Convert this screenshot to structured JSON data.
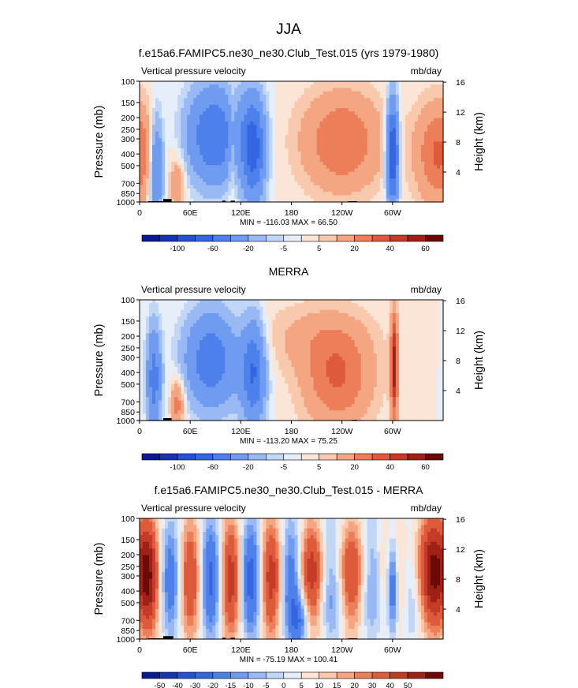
{
  "page": {
    "title": "JJA"
  },
  "chart_data": [
    {
      "type": "heatmap",
      "title": "f.e15a6.FAMIPC5.ne30_ne30.Club_Test.015 (yrs 1979-1980)",
      "left_label": "Vertical pressure velocity",
      "right_label": "mb/day",
      "ylabel": "Pressure (mb)",
      "ylabel_right": "Height (km)",
      "xticks": [
        "0",
        "60E",
        "120E",
        "180",
        "120W",
        "60W"
      ],
      "xtick_lon": [
        0,
        60,
        120,
        180,
        240,
        300
      ],
      "xlim": [
        0,
        360
      ],
      "yticks": [
        "100",
        "150",
        "200",
        "250",
        "300",
        "400",
        "500",
        "700",
        "850",
        "1000"
      ],
      "ytick_values": [
        100,
        150,
        200,
        250,
        300,
        400,
        500,
        700,
        850,
        1000
      ],
      "ylim": [
        100,
        1000
      ],
      "height_ticks": [
        "4",
        "8",
        "12",
        "16"
      ],
      "height_values": [
        4,
        8,
        12,
        16
      ],
      "stats": "MIN = -116.03   MAX =  66.50",
      "colorbar_labels": [
        "-100",
        "-60",
        "-20",
        "-5",
        "5",
        "20",
        "40",
        "60"
      ],
      "colorbar_levels": [
        -120,
        -100,
        -80,
        -60,
        -40,
        -20,
        -10,
        -5,
        0,
        5,
        10,
        20,
        30,
        40,
        50,
        60
      ],
      "colorbar_colors": [
        "#0a1a8a",
        "#1733b8",
        "#2450d6",
        "#3466e2",
        "#4d80ea",
        "#6f9bf0",
        "#98b9f3",
        "#c2d6f6",
        "#e6eefa",
        "#fbe5d6",
        "#f9c9ae",
        "#f4a582",
        "#ec7e5a",
        "#dd5a3b",
        "#c43c28",
        "#9e2016",
        "#6b0a06"
      ],
      "terrain": [
        [
          10,
          30,
          985
        ],
        [
          28,
          38,
          945
        ],
        [
          98,
          102,
          975
        ],
        [
          108,
          113,
          975
        ],
        [
          247,
          258,
          985
        ]
      ]
    },
    {
      "type": "heatmap",
      "title": "MERRA",
      "left_label": "Vertical pressure velocity",
      "right_label": "mb/day",
      "ylabel": "Pressure (mb)",
      "ylabel_right": "Height (km)",
      "xticks": [
        "0",
        "60E",
        "120E",
        "180",
        "120W",
        "60W"
      ],
      "xtick_lon": [
        0,
        60,
        120,
        180,
        240,
        300
      ],
      "xlim": [
        0,
        360
      ],
      "yticks": [
        "100",
        "150",
        "200",
        "250",
        "300",
        "400",
        "500",
        "700",
        "850",
        "1000"
      ],
      "ytick_values": [
        100,
        150,
        200,
        250,
        300,
        400,
        500,
        700,
        850,
        1000
      ],
      "ylim": [
        100,
        1000
      ],
      "height_ticks": [
        "4",
        "8",
        "12",
        "16"
      ],
      "height_values": [
        4,
        8,
        12,
        16
      ],
      "stats": "MIN = -113.20   MAX =  75.25",
      "colorbar_labels": [
        "-100",
        "-60",
        "-20",
        "-5",
        "5",
        "20",
        "40",
        "60"
      ],
      "colorbar_levels": [
        -120,
        -100,
        -80,
        -60,
        -40,
        -20,
        -10,
        -5,
        0,
        5,
        10,
        20,
        30,
        40,
        50,
        60
      ],
      "colorbar_colors": [
        "#0a1a8a",
        "#1733b8",
        "#2450d6",
        "#3466e2",
        "#4d80ea",
        "#6f9bf0",
        "#98b9f3",
        "#c2d6f6",
        "#e6eefa",
        "#fbe5d6",
        "#f9c9ae",
        "#f4a582",
        "#ec7e5a",
        "#dd5a3b",
        "#c43c28",
        "#9e2016",
        "#6b0a06"
      ],
      "terrain": [
        [
          10,
          30,
          990
        ],
        [
          28,
          38,
          955
        ],
        [
          252,
          258,
          985
        ]
      ]
    },
    {
      "type": "heatmap",
      "title": "f.e15a6.FAMIPC5.ne30_ne30.Club_Test.015 - MERRA",
      "left_label": "Vertical pressure velocity",
      "right_label": "mb/day",
      "ylabel": "Pressure (mb)",
      "ylabel_right": "Height (km)",
      "xticks": [
        "0",
        "60E",
        "120E",
        "180",
        "120W",
        "60W"
      ],
      "xtick_lon": [
        0,
        60,
        120,
        180,
        240,
        300
      ],
      "xlim": [
        0,
        360
      ],
      "yticks": [
        "100",
        "150",
        "200",
        "250",
        "300",
        "400",
        "500",
        "700",
        "850",
        "1000"
      ],
      "ytick_values": [
        100,
        150,
        200,
        250,
        300,
        400,
        500,
        700,
        850,
        1000
      ],
      "ylim": [
        100,
        1000
      ],
      "height_ticks": [
        "4",
        "8",
        "12",
        "16"
      ],
      "height_values": [
        4,
        8,
        12,
        16
      ],
      "stats": "MIN = -75.19   MAX = 100.41",
      "colorbar_labels": [
        "-50",
        "-40",
        "-30",
        "-20",
        "-15",
        "-10",
        "-5",
        "0",
        "5",
        "10",
        "15",
        "20",
        "30",
        "40",
        "50"
      ],
      "colorbar_levels": [
        -55,
        -50,
        -40,
        -30,
        -20,
        -15,
        -10,
        -5,
        0,
        5,
        10,
        15,
        20,
        30,
        40,
        50
      ],
      "colorbar_colors": [
        "#0a1a8a",
        "#1733b8",
        "#2450d6",
        "#3466e2",
        "#4d80ea",
        "#6f9bf0",
        "#98b9f3",
        "#c2d6f6",
        "#e6eefa",
        "#fbe5d6",
        "#f9c9ae",
        "#f4a582",
        "#ec7e5a",
        "#dd5a3b",
        "#c43c28",
        "#9e2016",
        "#6b0a06"
      ],
      "terrain": [
        [
          10,
          30,
          985
        ],
        [
          28,
          40,
          945
        ],
        [
          98,
          102,
          975
        ],
        [
          108,
          113,
          975
        ],
        [
          247,
          258,
          985
        ]
      ]
    }
  ]
}
